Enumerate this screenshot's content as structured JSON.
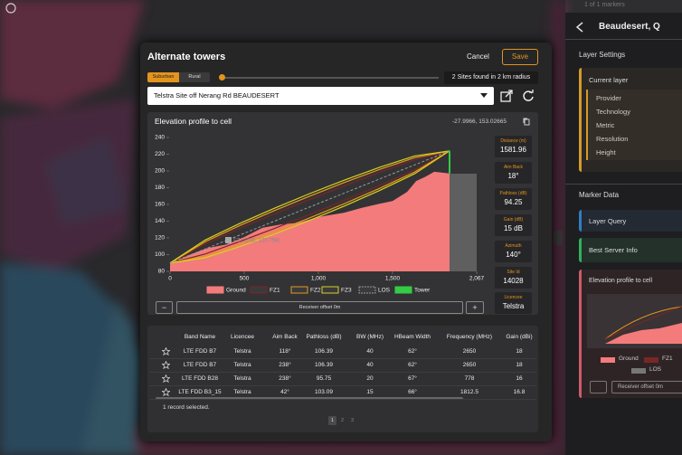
{
  "map": {
    "marker_count": "1 of 1 markers"
  },
  "side_panel": {
    "title": "Beaudesert, Q",
    "layer_settings": "Layer Settings",
    "current_layer": "Current layer",
    "layer_items": [
      "Provider",
      "Technology",
      "Metric",
      "Resolution",
      "Height"
    ],
    "marker_data": "Marker Data",
    "layer_query": "Layer Query",
    "best_server": "Best Server Info",
    "elevation_title": "Elevation profile to cell",
    "legend": [
      "Ground",
      "FZ1",
      "LOS"
    ],
    "receiver_button": "Receiver offset 0m"
  },
  "dialog": {
    "title": "Alternate towers",
    "cancel": "Cancel",
    "save": "Save",
    "tabs": [
      "Suburban",
      "Rural"
    ],
    "sites_found": "2 Sites found in 2 km radius",
    "selected_site": "Telstra Site off Nerang Rd BEAUDESERT",
    "chart_title": "Elevation profile to cell",
    "coordinates": "-27.9966, 153.02665",
    "stats": [
      {
        "label": "Distance (m)",
        "value": "1581.96"
      },
      {
        "label": "Aim Back",
        "value": "18°"
      },
      {
        "label": "Pathloss (dB)",
        "value": "94.25"
      },
      {
        "label": "Gain (dB)",
        "value": "15 dB"
      },
      {
        "label": "Azimuth",
        "value": "140°"
      },
      {
        "label": "Site Id",
        "value": "14028"
      },
      {
        "label": "Licencee",
        "value": "Telstra"
      }
    ],
    "minus": "−",
    "receiver_offset": "Receiver offset 0m",
    "plus": "+",
    "table": {
      "headers": [
        "Band Name",
        "Licencee",
        "Aim Back",
        "Pathloss (dB)",
        "BW (MHz)",
        "HBeam Width",
        "Frequency (MHz)",
        "Gain (dBi)"
      ],
      "rows": [
        [
          "LTE FDD B7",
          "Telstra",
          "118°",
          "106.39",
          "40",
          "62°",
          "2650",
          "18"
        ],
        [
          "LTE FDD B7",
          "Telstra",
          "238°",
          "106.39",
          "40",
          "62°",
          "2650",
          "18"
        ],
        [
          "LTE FDD B28",
          "Telstra",
          "238°",
          "95.75",
          "20",
          "67°",
          "778",
          "16"
        ],
        [
          "LTE FDD B3_15",
          "Telstra",
          "42°",
          "103.09",
          "15",
          "66°",
          "1812.5",
          "16.8"
        ]
      ]
    },
    "status": "1 record selected.",
    "pages": [
      "1",
      "2",
      "3"
    ]
  },
  "chart_data": {
    "type": "line",
    "tooltip": "FZ1 (230, 120.758)",
    "xlim": [
      0,
      2067
    ],
    "ylim": [
      80,
      240
    ],
    "xticks": [
      0,
      500,
      {
        "value": 1000,
        "label": "1,000"
      },
      {
        "value": 1500,
        "label": "1,500"
      },
      {
        "value": 2067,
        "label": "2,067"
      }
    ],
    "yticks": [
      80,
      100,
      120,
      140,
      160,
      180,
      200,
      220,
      240
    ],
    "series": [
      {
        "name": "Ground",
        "color": "#f47b7b",
        "x": [
          0,
          134,
          256,
          378,
          500,
          622,
          744,
          866,
          1000,
          1171,
          1293,
          1415,
          1500,
          1598,
          1659,
          1720,
          1781,
          1884
        ],
        "values": [
          89,
          100,
          108,
          112,
          121,
          132,
          136,
          138,
          145,
          150,
          156,
          161,
          164,
          175,
          188,
          193,
          199,
          197
        ]
      },
      {
        "name": "FZ1",
        "color": "#7a2626",
        "x": [
          0,
          236,
          471,
          707,
          942,
          1178,
          1413,
          1649,
          1884
        ],
        "values": [
          90,
          112.8,
          131.3,
          149,
          166,
          182.5,
          198.3,
          213.3,
          224
        ],
        "lower_values": [
          90,
          100.8,
          115.7,
          131.6,
          148,
          165.1,
          182.7,
          201.3,
          224
        ]
      },
      {
        "name": "FZ2",
        "color": "#e39a1e",
        "x": [
          0,
          236,
          471,
          707,
          942,
          1178,
          1413,
          1649,
          1884
        ],
        "values": [
          90,
          115.4,
          134.8,
          152.9,
          170,
          186.4,
          201.8,
          215.9,
          224
        ],
        "lower_values": [
          90,
          98.2,
          112.2,
          127.7,
          144,
          161.2,
          179.2,
          198.7,
          224
        ]
      },
      {
        "name": "FZ3",
        "color": "#d6d21e",
        "x": [
          0,
          236,
          471,
          707,
          942,
          1178,
          1413,
          1649,
          1884
        ],
        "values": [
          90,
          117.4,
          137.4,
          155.8,
          173,
          189.3,
          204.4,
          217.9,
          224
        ],
        "lower_values": [
          90,
          96.2,
          109.6,
          124.8,
          141,
          158.3,
          176.6,
          196.7,
          224
        ]
      },
      {
        "name": "LOS",
        "color": "#9a9a9a",
        "x": [
          0,
          1884
        ],
        "values": [
          90,
          224
        ]
      },
      {
        "name": "Tower",
        "color": "#33cc44",
        "x": [
          1884,
          1884
        ],
        "values": [
          197,
          224
        ]
      }
    ]
  }
}
